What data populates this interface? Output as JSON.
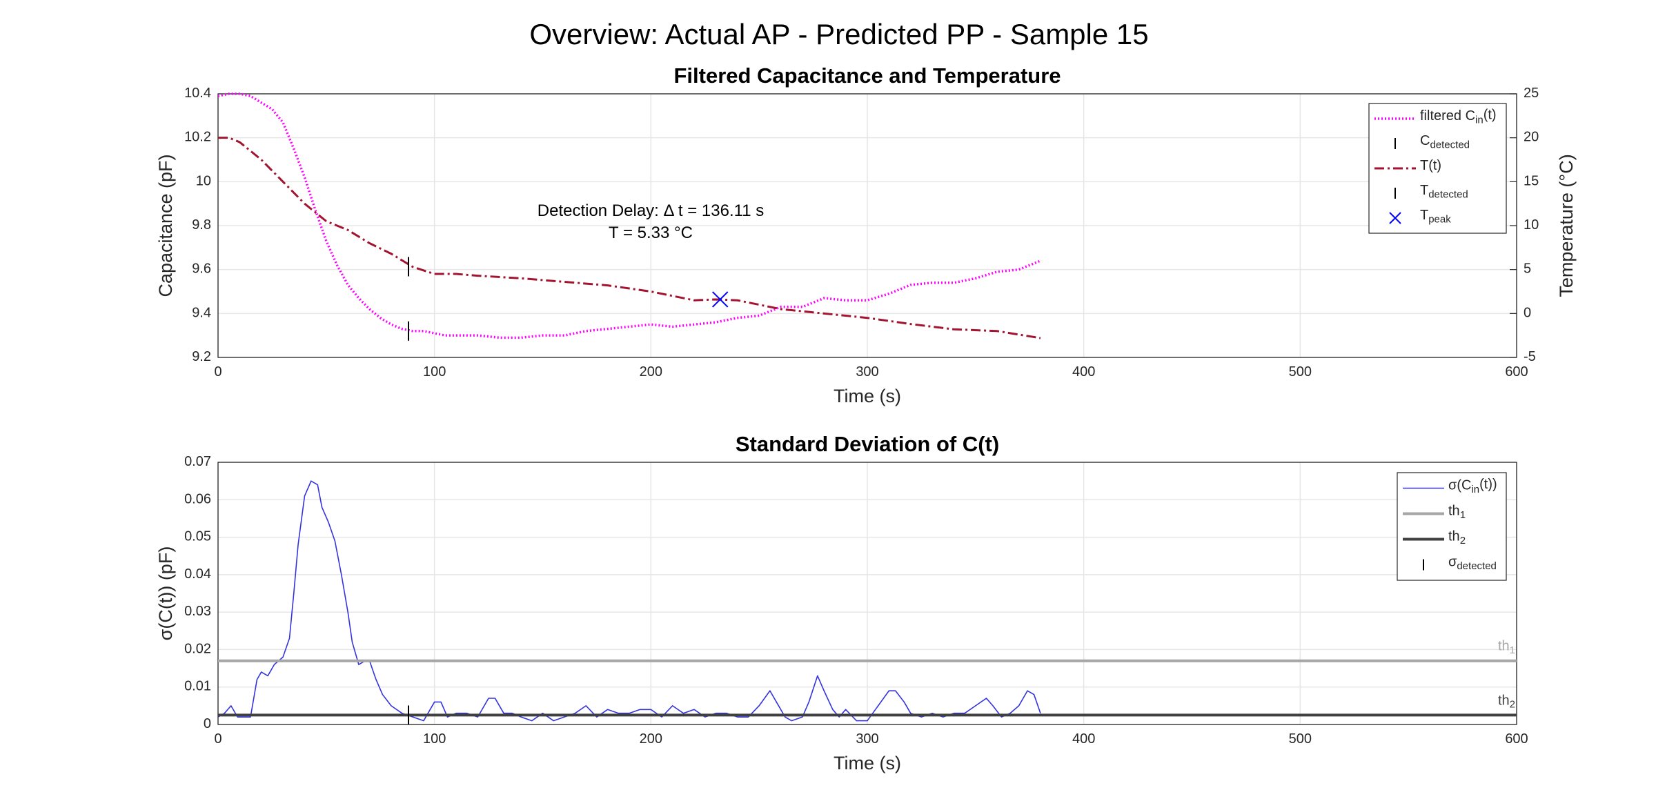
{
  "title": "Overview: Actual AP - Predicted PP - Sample 15",
  "chart_data": [
    {
      "type": "line",
      "title": "Filtered Capacitance and Temperature",
      "xlabel": "Time (s)",
      "ylabel": "Capacitance (pF)",
      "y2label": "Temperature (°C)",
      "xlim": [
        0,
        600
      ],
      "xticks": [
        0,
        100,
        200,
        300,
        400,
        500,
        600
      ],
      "ylim": [
        9.2,
        10.4
      ],
      "yticks": [
        9.2,
        9.4,
        9.6,
        9.8,
        10,
        10.2,
        10.4
      ],
      "y2lim": [
        -5,
        25
      ],
      "y2ticks": [
        -5,
        0,
        5,
        10,
        15,
        20,
        25
      ],
      "grid": true,
      "legend": "upper right",
      "annotations": [
        "Detection Delay: Δ t = 136.11 s",
        "T = 5.33 °C"
      ],
      "series": [
        {
          "name": "filtered C_{in}(t)",
          "color": "#ff00ff",
          "style": "dotted",
          "x": [
            0,
            5,
            10,
            15,
            20,
            25,
            30,
            35,
            40,
            45,
            50,
            55,
            60,
            65,
            70,
            75,
            80,
            85,
            90,
            95,
            100,
            105,
            110,
            120,
            130,
            140,
            150,
            160,
            170,
            180,
            190,
            200,
            210,
            220,
            230,
            240,
            250,
            260,
            270,
            280,
            290,
            300,
            310,
            320,
            330,
            340,
            350,
            360,
            370,
            380
          ],
          "values": [
            10.39,
            10.4,
            10.4,
            10.39,
            10.36,
            10.33,
            10.27,
            10.15,
            10.02,
            9.87,
            9.73,
            9.62,
            9.53,
            9.47,
            9.42,
            9.38,
            9.35,
            9.33,
            9.32,
            9.32,
            9.31,
            9.3,
            9.3,
            9.3,
            9.29,
            9.29,
            9.3,
            9.3,
            9.32,
            9.33,
            9.34,
            9.35,
            9.34,
            9.35,
            9.36,
            9.38,
            9.39,
            9.43,
            9.43,
            9.47,
            9.46,
            9.46,
            9.49,
            9.53,
            9.54,
            9.54,
            9.56,
            9.59,
            9.6,
            9.64
          ]
        },
        {
          "name": "C_{detected}",
          "color": "#000000",
          "marker": "vline",
          "x": [
            88
          ],
          "values": [
            9.32
          ]
        },
        {
          "name": "T(t)",
          "color": "#a2142f",
          "style": "dashdot",
          "axis": "y2",
          "x": [
            0,
            5,
            10,
            20,
            30,
            40,
            50,
            60,
            70,
            80,
            90,
            100,
            110,
            120,
            140,
            160,
            180,
            200,
            220,
            230,
            240,
            260,
            280,
            300,
            320,
            340,
            360,
            380
          ],
          "values": [
            20,
            20,
            19.5,
            17.5,
            15,
            12.5,
            10.5,
            9.5,
            8,
            6.8,
            5.3,
            4.5,
            4.5,
            4.3,
            4,
            3.6,
            3.2,
            2.5,
            1.5,
            1.6,
            1.5,
            0.5,
            0,
            -0.5,
            -1.2,
            -1.8,
            -2,
            -2.8
          ]
        },
        {
          "name": "T_{detected}",
          "color": "#000000",
          "marker": "vline",
          "axis": "y2",
          "x": [
            88
          ],
          "values": [
            5.33
          ]
        },
        {
          "name": "T_{peak}",
          "color": "#0000ff",
          "marker": "x",
          "axis": "y2",
          "x": [
            232
          ],
          "values": [
            1.6
          ]
        }
      ]
    },
    {
      "type": "line",
      "title": "Standard Deviation of C(t)",
      "xlabel": "Time (s)",
      "ylabel": "σ(C(t)) (pF)",
      "xlim": [
        0,
        600
      ],
      "xticks": [
        0,
        100,
        200,
        300,
        400,
        500,
        600
      ],
      "ylim": [
        0,
        0.07
      ],
      "yticks": [
        0,
        0.01,
        0.02,
        0.03,
        0.04,
        0.05,
        0.06,
        0.07
      ],
      "grid": true,
      "legend": "upper right",
      "series": [
        {
          "name": "σ(C_{in}(t))",
          "color": "#3333dd",
          "style": "solid",
          "x": [
            0,
            3,
            6,
            9,
            12,
            15,
            18,
            20,
            23,
            26,
            30,
            33,
            35,
            37,
            40,
            43,
            46,
            48,
            51,
            54,
            57,
            60,
            62,
            65,
            68,
            70,
            73,
            76,
            80,
            85,
            90,
            95,
            100,
            103,
            106,
            110,
            115,
            120,
            125,
            128,
            132,
            136,
            140,
            145,
            150,
            155,
            160,
            165,
            170,
            175,
            180,
            185,
            190,
            195,
            200,
            205,
            210,
            215,
            220,
            225,
            230,
            235,
            240,
            245,
            250,
            255,
            258,
            262,
            265,
            270,
            273,
            277,
            280,
            284,
            287,
            290,
            295,
            300,
            305,
            310,
            313,
            317,
            320,
            325,
            330,
            335,
            340,
            345,
            350,
            355,
            358,
            362,
            366,
            370,
            374,
            377,
            380
          ],
          "values": [
            0.002,
            0.003,
            0.005,
            0.002,
            0.002,
            0.002,
            0.012,
            0.014,
            0.013,
            0.016,
            0.018,
            0.023,
            0.035,
            0.048,
            0.061,
            0.065,
            0.064,
            0.058,
            0.054,
            0.049,
            0.04,
            0.03,
            0.022,
            0.016,
            0.017,
            0.017,
            0.012,
            0.008,
            0.005,
            0.003,
            0.002,
            0.001,
            0.006,
            0.006,
            0.002,
            0.003,
            0.003,
            0.002,
            0.007,
            0.007,
            0.003,
            0.003,
            0.002,
            0.001,
            0.003,
            0.001,
            0.002,
            0.003,
            0.005,
            0.002,
            0.004,
            0.003,
            0.003,
            0.004,
            0.004,
            0.002,
            0.005,
            0.003,
            0.004,
            0.002,
            0.003,
            0.003,
            0.002,
            0.002,
            0.005,
            0.009,
            0.006,
            0.002,
            0.001,
            0.002,
            0.006,
            0.013,
            0.009,
            0.004,
            0.002,
            0.004,
            0.001,
            0.001,
            0.005,
            0.009,
            0.009,
            0.006,
            0.003,
            0.002,
            0.003,
            0.002,
            0.003,
            0.003,
            0.005,
            0.007,
            0.005,
            0.002,
            0.003,
            0.005,
            0.009,
            0.008,
            0.003
          ]
        },
        {
          "name": "th_{1}",
          "color": "#a6a6a6",
          "marker": "hline",
          "value": 0.017
        },
        {
          "name": "th_{2}",
          "color": "#404040",
          "marker": "hline",
          "value": 0.0025
        },
        {
          "name": "σ_{detected}",
          "color": "#000000",
          "marker": "vline",
          "x": [
            88
          ],
          "values": [
            0.0025
          ]
        }
      ]
    }
  ]
}
